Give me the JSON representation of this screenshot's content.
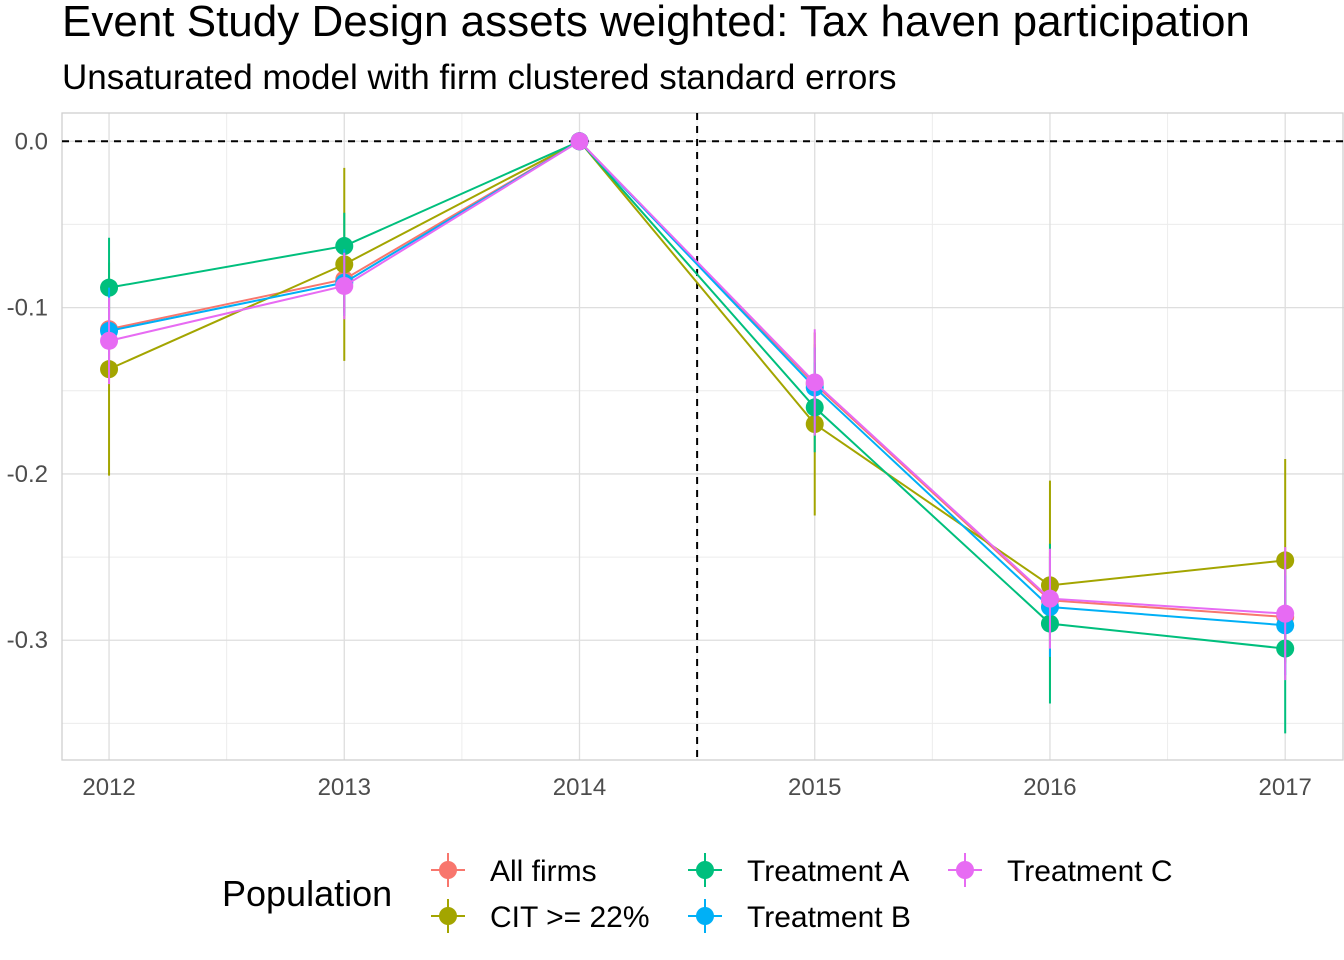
{
  "chart_data": {
    "type": "line",
    "title": "Event Study Design assets weighted: Tax haven participation",
    "subtitle": "Unsaturated model with firm clustered standard errors",
    "x": [
      2012,
      2013,
      2014,
      2015,
      2016,
      2017
    ],
    "x_ticks": [
      "2012",
      "2013",
      "2014",
      "2015",
      "2016",
      "2017"
    ],
    "y_ticks": [
      "0.0",
      "-0.1",
      "-0.2",
      "-0.3"
    ],
    "y_tick_values": [
      0.0,
      -0.1,
      -0.2,
      -0.3
    ],
    "ylim": [
      -0.372,
      0.017
    ],
    "xlim": [
      2011.8,
      2017.25
    ],
    "reference_lines": {
      "horizontal_y": 0.0,
      "vertical_x": 2014.5,
      "style": "dashed"
    },
    "grid": true,
    "legend": {
      "title": "Population",
      "placement": "bottom"
    },
    "series": [
      {
        "name": "All firms",
        "color": "#F8766D",
        "values": [
          -0.113,
          -0.083,
          0.0,
          -0.146,
          -0.276,
          -0.286
        ],
        "ci_low": [
          -0.143,
          -0.103,
          0.0,
          -0.17,
          -0.305,
          -0.314
        ],
        "ci_high": [
          -0.083,
          -0.063,
          0.0,
          -0.122,
          -0.247,
          -0.258
        ]
      },
      {
        "name": "CIT >= 22%",
        "color": "#A3A500",
        "values": [
          -0.137,
          -0.074,
          0.0,
          -0.17,
          -0.267,
          -0.252
        ],
        "ci_low": [
          -0.201,
          -0.132,
          0.0,
          -0.225,
          -0.33,
          -0.313
        ],
        "ci_high": [
          -0.073,
          -0.016,
          0.0,
          -0.115,
          -0.204,
          -0.191
        ]
      },
      {
        "name": "Treatment A",
        "color": "#00BF7D",
        "values": [
          -0.088,
          -0.063,
          0.0,
          -0.16,
          -0.29,
          -0.305
        ],
        "ci_low": [
          -0.118,
          -0.083,
          0.0,
          -0.187,
          -0.338,
          -0.356
        ],
        "ci_high": [
          -0.058,
          -0.043,
          0.0,
          -0.133,
          -0.242,
          -0.254
        ]
      },
      {
        "name": "Treatment B",
        "color": "#00B0F6",
        "values": [
          -0.114,
          -0.085,
          0.0,
          -0.148,
          -0.28,
          -0.291
        ],
        "ci_low": [
          -0.14,
          -0.105,
          0.0,
          -0.172,
          -0.31,
          -0.321
        ],
        "ci_high": [
          -0.088,
          -0.065,
          0.0,
          -0.124,
          -0.25,
          -0.261
        ]
      },
      {
        "name": "Treatment C",
        "color": "#E76BF3",
        "values": [
          -0.12,
          -0.087,
          0.0,
          -0.145,
          -0.275,
          -0.284
        ],
        "ci_low": [
          -0.146,
          -0.107,
          0.0,
          -0.177,
          -0.305,
          -0.324
        ],
        "ci_high": [
          -0.094,
          -0.067,
          0.0,
          -0.113,
          -0.245,
          -0.244
        ]
      }
    ]
  }
}
